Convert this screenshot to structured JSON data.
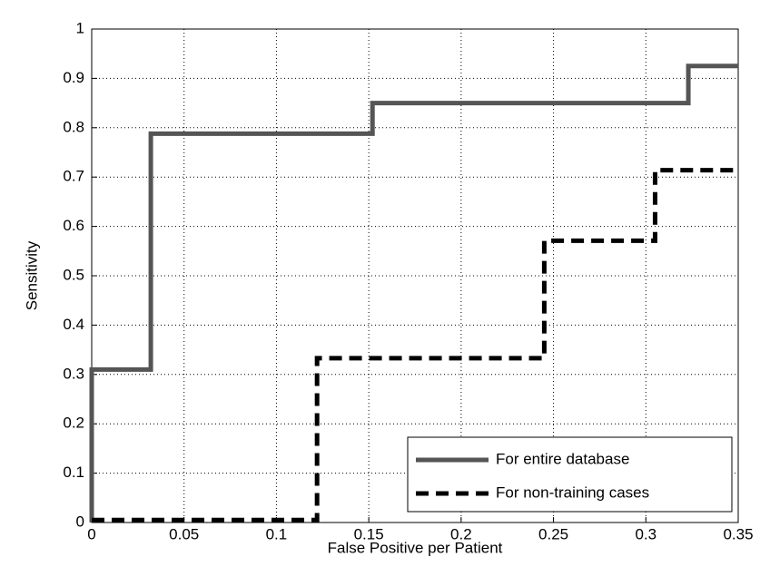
{
  "chart_data": {
    "type": "line",
    "xlabel": "False Positive per Patient",
    "ylabel": "Sensitivity",
    "xlim": [
      0,
      0.35
    ],
    "ylim": [
      0,
      1
    ],
    "xticks": [
      0,
      0.05,
      0.1,
      0.15,
      0.2,
      0.25,
      0.3,
      0.35
    ],
    "yticks": [
      0,
      0.1,
      0.2,
      0.3,
      0.4,
      0.5,
      0.6,
      0.7,
      0.8,
      0.9,
      1
    ],
    "grid": true,
    "legend_position": "lower right",
    "series": [
      {
        "name": "For entire database",
        "color": "#555555",
        "linestyle": "solid",
        "x": [
          0,
          0,
          0.032,
          0.032,
          0.152,
          0.152,
          0.323,
          0.323,
          0.35
        ],
        "values": [
          0,
          0.31,
          0.31,
          0.788,
          0.788,
          0.85,
          0.85,
          0.925,
          0.925
        ]
      },
      {
        "name": "For non-training cases",
        "color": "#000000",
        "linestyle": "dashed",
        "x": [
          0,
          0.122,
          0.122,
          0.245,
          0.245,
          0.305,
          0.305,
          0.35
        ],
        "values": [
          0.005,
          0.005,
          0.333,
          0.333,
          0.571,
          0.571,
          0.714,
          0.714
        ]
      }
    ]
  }
}
